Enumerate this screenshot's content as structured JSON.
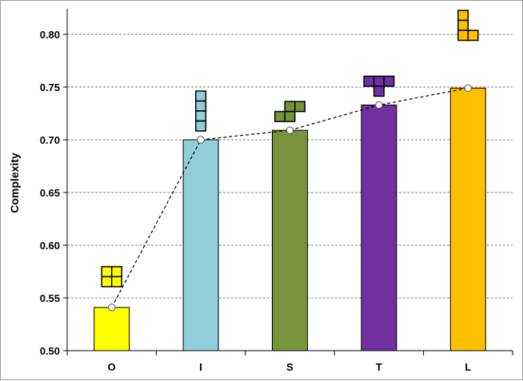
{
  "chart_data": {
    "type": "bar",
    "title": "",
    "xlabel": "",
    "ylabel": "Complexity",
    "categories": [
      "O",
      "I",
      "S",
      "T",
      "L"
    ],
    "values": [
      0.541,
      0.7,
      0.709,
      0.733,
      0.749
    ],
    "colors": [
      "#ffff00",
      "#92cddc",
      "#77933c",
      "#7030a0",
      "#ffc000"
    ],
    "line": {
      "style": "dashed",
      "values": [
        0.541,
        0.7,
        0.709,
        0.733,
        0.749
      ],
      "marker": "white-circle"
    },
    "ylim": [
      0.5,
      0.82
    ],
    "yticks": [
      "0.50",
      "0.55",
      "0.60",
      "0.65",
      "0.70",
      "0.75",
      "0.80"
    ],
    "grid": true,
    "legend": "none",
    "icons": [
      "tetromino-O-icon",
      "tetromino-I-icon",
      "tetromino-S-icon",
      "tetromino-T-icon",
      "tetromino-L-icon"
    ]
  }
}
